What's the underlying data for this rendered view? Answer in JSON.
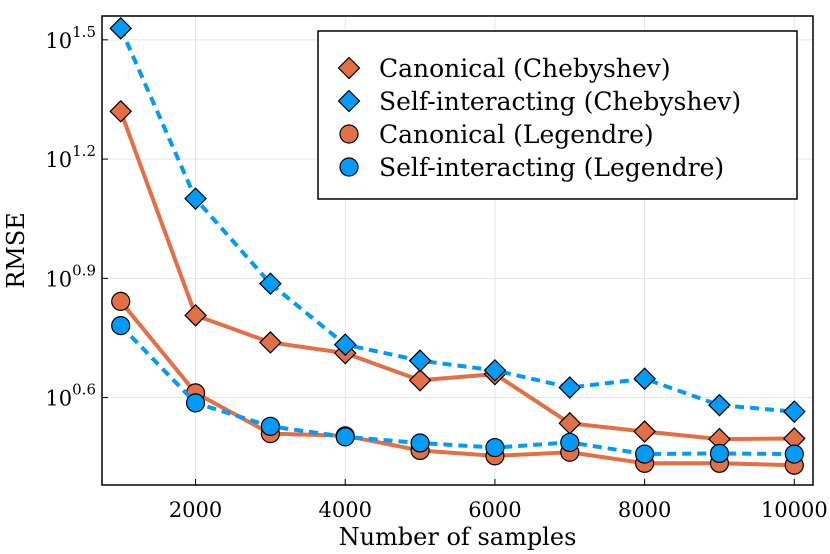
{
  "chart_data": {
    "type": "line",
    "xlabel": "Number of samples",
    "ylabel": "RMSE",
    "y_scale": "log10",
    "xlim": [
      750,
      10250
    ],
    "ylim_exponent": [
      0.38,
      1.56
    ],
    "x_ticks": [
      2000,
      4000,
      6000,
      8000,
      10000
    ],
    "x_tick_labels": [
      "2000",
      "4000",
      "6000",
      "8000",
      "10000"
    ],
    "y_ticks_exponent": [
      0.6,
      0.9,
      1.2,
      1.5
    ],
    "y_tick_labels": [
      {
        "base": "10",
        "exp": "0.6"
      },
      {
        "base": "10",
        "exp": "0.9"
      },
      {
        "base": "10",
        "exp": "1.2"
      },
      {
        "base": "10",
        "exp": "1.5"
      }
    ],
    "grid": true,
    "legend_position": "top-right",
    "x": [
      1000,
      2000,
      3000,
      4000,
      5000,
      6000,
      7000,
      8000,
      9000,
      10000
    ],
    "series": [
      {
        "name": "Canonical (Chebyshev)",
        "color": "#e26f46",
        "marker": "diamond",
        "dashed": false,
        "values": [
          20.9,
          6.41,
          5.48,
          5.15,
          4.4,
          4.56,
          3.43,
          3.27,
          3.13,
          3.14
        ]
      },
      {
        "name": "Self-interacting (Chebyshev)",
        "color": "#009af9",
        "marker": "diamond",
        "dashed": true,
        "values": [
          33.8,
          12.6,
          7.7,
          5.41,
          4.93,
          4.66,
          4.22,
          4.44,
          3.81,
          3.67
        ]
      },
      {
        "name": "Canonical (Legendre)",
        "color": "#e26f46",
        "marker": "circle",
        "dashed": false,
        "values": [
          6.95,
          4.09,
          3.23,
          3.19,
          2.93,
          2.84,
          2.9,
          2.72,
          2.72,
          2.69
        ]
      },
      {
        "name": "Self-interacting (Legendre)",
        "color": "#009af9",
        "marker": "circle",
        "dashed": true,
        "values": [
          6.04,
          3.86,
          3.37,
          3.17,
          3.06,
          2.98,
          3.07,
          2.87,
          2.88,
          2.87
        ]
      }
    ]
  }
}
